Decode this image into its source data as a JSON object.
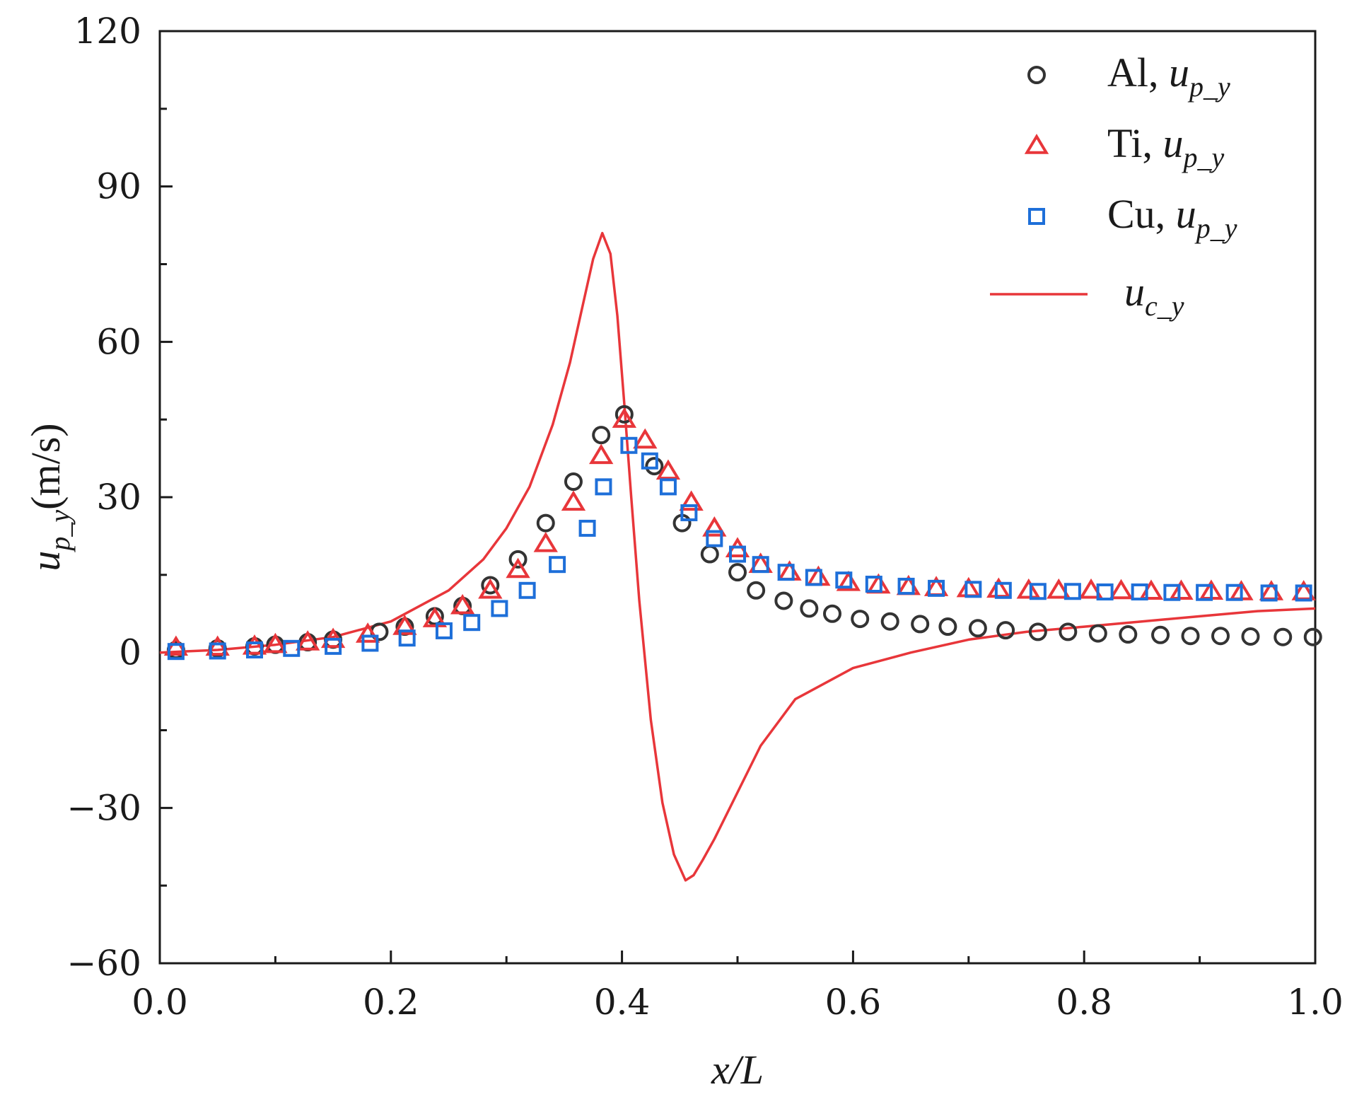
{
  "chart_data": {
    "type": "scatter",
    "title": "",
    "xlabel": {
      "main": "x/L"
    },
    "ylabel": {
      "main": "u",
      "sub": "p_y",
      "unit": "(m/s)"
    },
    "xlim": [
      0.0,
      1.0
    ],
    "ylim": [
      -60,
      120
    ],
    "xticks": [
      0.0,
      0.2,
      0.4,
      0.6,
      0.8,
      1.0
    ],
    "xtick_labels": [
      "0.0",
      "0.2",
      "0.4",
      "0.6",
      "0.8",
      "1.0"
    ],
    "yticks": [
      -60,
      -30,
      0,
      30,
      60,
      90,
      120
    ],
    "ytick_labels": [
      "−60",
      "−30",
      "0",
      "30",
      "60",
      "90",
      "120"
    ],
    "legend_position": "top-right",
    "series": [
      {
        "name": "Al, u_p_y",
        "legend": {
          "prefix": "Al, ",
          "var": "u",
          "sub": "p_y"
        },
        "marker": "circle",
        "color": "#333333",
        "x": [
          0.014,
          0.05,
          0.082,
          0.1,
          0.128,
          0.15,
          0.19,
          0.212,
          0.238,
          0.262,
          0.286,
          0.31,
          0.334,
          0.358,
          0.382,
          0.402,
          0.428,
          0.452,
          0.476,
          0.5,
          0.516,
          0.54,
          0.562,
          0.582,
          0.606,
          0.632,
          0.658,
          0.682,
          0.708,
          0.732,
          0.76,
          0.786,
          0.812,
          0.838,
          0.866,
          0.892,
          0.918,
          0.944,
          0.972,
          0.998
        ],
        "y": [
          0.5,
          0.8,
          1.2,
          1.5,
          2,
          2.5,
          4,
          5,
          7,
          9,
          13,
          18,
          25,
          33,
          42,
          46,
          36,
          25,
          19,
          15.5,
          12,
          10,
          8.5,
          7.5,
          6.5,
          6,
          5.5,
          5,
          4.7,
          4.3,
          4,
          4,
          3.7,
          3.5,
          3.4,
          3.2,
          3.2,
          3.1,
          3,
          3
        ]
      },
      {
        "name": "Ti, u_p_y",
        "legend": {
          "prefix": "Ti, ",
          "var": "u",
          "sub": "p_y"
        },
        "marker": "triangle",
        "color": "#e8363a",
        "x": [
          0.014,
          0.05,
          0.082,
          0.1,
          0.128,
          0.15,
          0.18,
          0.212,
          0.238,
          0.262,
          0.286,
          0.31,
          0.334,
          0.358,
          0.382,
          0.402,
          0.42,
          0.44,
          0.46,
          0.48,
          0.5,
          0.52,
          0.545,
          0.57,
          0.596,
          0.622,
          0.648,
          0.672,
          0.7,
          0.726,
          0.752,
          0.778,
          0.806,
          0.832,
          0.858,
          0.884,
          0.91,
          0.936,
          0.962,
          0.99
        ],
        "y": [
          1,
          1,
          1.2,
          1.5,
          2,
          2.5,
          3.5,
          5,
          6.5,
          9,
          12,
          16,
          21,
          29,
          38,
          45,
          41,
          35,
          29,
          24,
          20,
          17,
          15.5,
          14.5,
          13.5,
          13,
          12.7,
          12.5,
          12.3,
          12.2,
          12,
          12,
          12,
          11.9,
          11.8,
          11.8,
          11.8,
          11.7,
          11.7,
          11.7
        ]
      },
      {
        "name": "Cu, u_p_y",
        "legend": {
          "prefix": "Cu, ",
          "var": "u",
          "sub": "p_y"
        },
        "marker": "square",
        "color": "#1e6fd9",
        "x": [
          0.014,
          0.05,
          0.082,
          0.114,
          0.15,
          0.182,
          0.214,
          0.246,
          0.27,
          0.294,
          0.318,
          0.344,
          0.37,
          0.384,
          0.406,
          0.424,
          0.44,
          0.458,
          0.48,
          0.5,
          0.52,
          0.542,
          0.566,
          0.592,
          0.618,
          0.646,
          0.672,
          0.704,
          0.73,
          0.76,
          0.79,
          0.818,
          0.848,
          0.876,
          0.904,
          0.93,
          0.96,
          0.99
        ],
        "y": [
          0.2,
          0.3,
          0.5,
          0.8,
          1.2,
          1.8,
          2.8,
          4.2,
          5.8,
          8.5,
          12,
          17,
          24,
          32,
          40,
          37,
          32,
          27,
          22,
          19,
          17,
          15.5,
          14.5,
          14,
          13.2,
          12.8,
          12.4,
          12.2,
          12,
          11.8,
          11.8,
          11.7,
          11.7,
          11.6,
          11.6,
          11.6,
          11.5,
          11.5
        ]
      },
      {
        "name": "u_c_y",
        "legend": {
          "prefix": "",
          "var": "u",
          "sub": "c_y"
        },
        "marker": "line",
        "color": "#e8363a",
        "x": [
          0.0,
          0.05,
          0.1,
          0.15,
          0.2,
          0.25,
          0.28,
          0.3,
          0.32,
          0.34,
          0.355,
          0.365,
          0.375,
          0.383,
          0.39,
          0.396,
          0.402,
          0.408,
          0.415,
          0.425,
          0.435,
          0.445,
          0.455,
          0.462,
          0.47,
          0.48,
          0.5,
          0.52,
          0.55,
          0.6,
          0.65,
          0.7,
          0.75,
          0.8,
          0.85,
          0.9,
          0.95,
          1.0
        ],
        "y": [
          0,
          0.5,
          1.5,
          3,
          6,
          12,
          18,
          24,
          32,
          44,
          56,
          66,
          76,
          81,
          77,
          65,
          48,
          30,
          10,
          -13,
          -29,
          -39,
          -44,
          -43,
          -40,
          -36,
          -27,
          -18,
          -9,
          -3,
          0,
          2.5,
          4,
          5,
          6,
          7,
          8,
          8.5
        ]
      }
    ]
  }
}
